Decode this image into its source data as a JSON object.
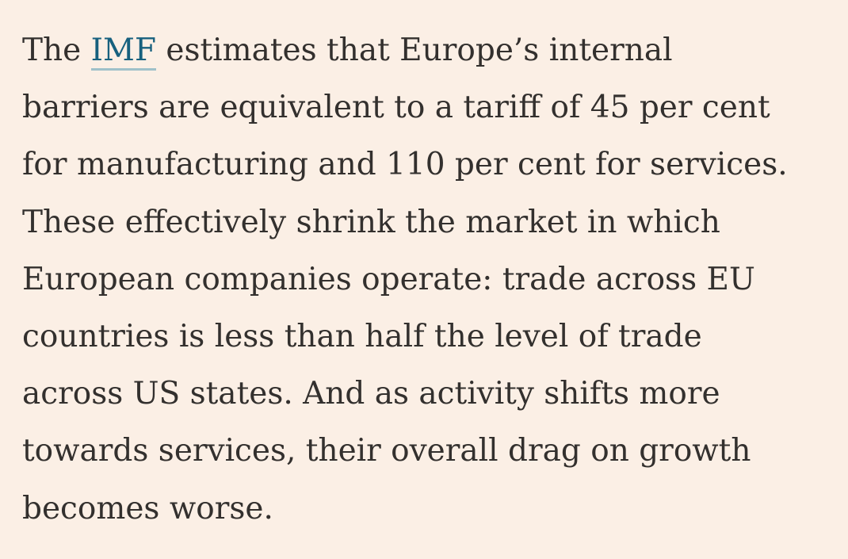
{
  "paragraph": {
    "line1_before_link": "The ",
    "link_text": "IMF",
    "line1_after_link": " estimates that Europe’s internal",
    "lines": [
      "barriers are equivalent to a tariff of 45 per cent",
      "for manufacturing and 110 per cent for services.",
      "These effectively shrink the market in which",
      "European companies operate: trade across EU",
      "countries is less than half the level of trade",
      "across US states. And as activity shifts more",
      "towards services, their overall drag on growth",
      "becomes worse."
    ]
  },
  "colors": {
    "background": "#fbefe5",
    "text": "#33302e",
    "link": "#17607e",
    "link_underline": "#9fc1c9"
  }
}
